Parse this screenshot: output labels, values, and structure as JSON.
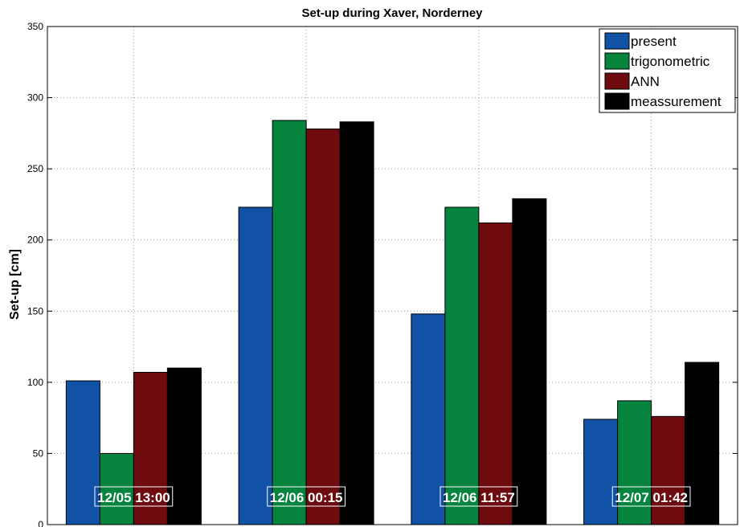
{
  "chart_data": {
    "type": "bar",
    "title": "Set-up during Xaver, Norderney",
    "xlabel": "",
    "ylabel": "Set-up [cm]",
    "ylim": [
      0,
      350
    ],
    "yticks": [
      0,
      50,
      100,
      150,
      200,
      250,
      300,
      350
    ],
    "grid": true,
    "legend_position": "top-right",
    "categories": [
      "12/05 13:00",
      "12/06 00:15",
      "12/06 11:57",
      "12/07 01:42"
    ],
    "series": [
      {
        "name": "present",
        "color": "#1252a6",
        "values": [
          101,
          223,
          148,
          74
        ]
      },
      {
        "name": "trigonometric",
        "color": "#06843e",
        "values": [
          50,
          284,
          223,
          87
        ]
      },
      {
        "name": "ANN",
        "color": "#6e0b0f",
        "values": [
          107,
          278,
          212,
          76
        ]
      },
      {
        "name": "meassurement",
        "color": "#000000",
        "values": [
          110,
          283,
          229,
          114
        ]
      }
    ]
  }
}
